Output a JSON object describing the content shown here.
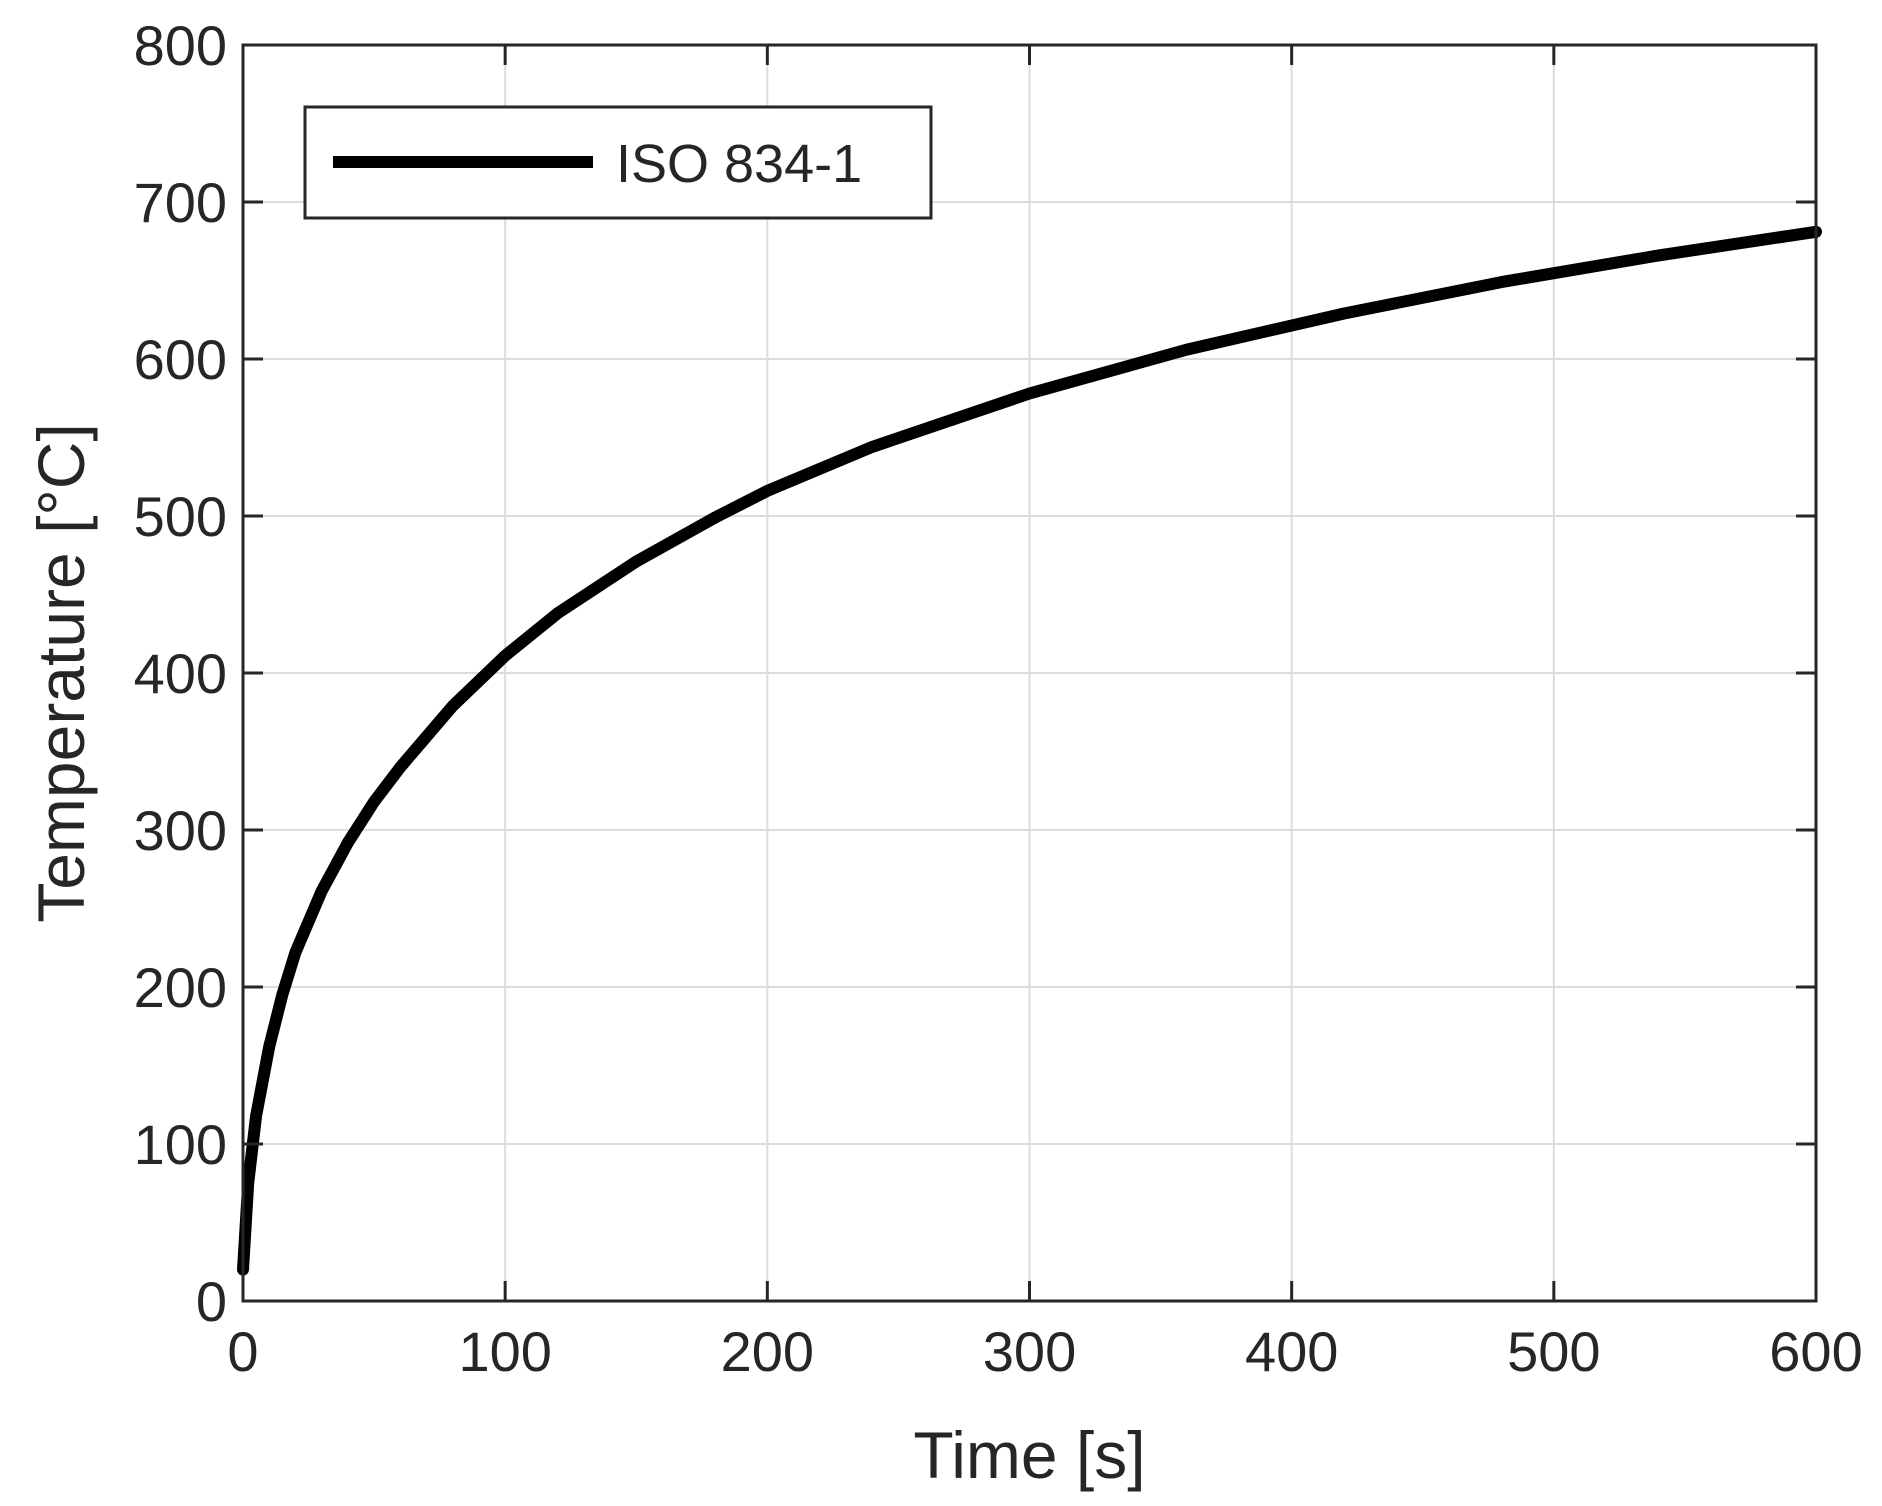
{
  "chart_data": {
    "type": "line",
    "xlabel": "Time [s]",
    "ylabel": "Temperature [°C]",
    "xlim": [
      0,
      600
    ],
    "ylim": [
      0,
      800
    ],
    "xticks": [
      0,
      100,
      200,
      300,
      400,
      500,
      600
    ],
    "yticks": [
      0,
      100,
      200,
      300,
      400,
      500,
      600,
      700,
      800
    ],
    "grid": true,
    "legend_position": "top-left",
    "series": [
      {
        "name": "ISO 834-1",
        "color": "#000000",
        "x": [
          0,
          2,
          5,
          10,
          15,
          20,
          30,
          40,
          50,
          60,
          80,
          100,
          120,
          150,
          180,
          200,
          240,
          300,
          360,
          420,
          480,
          540,
          600
        ],
        "y": [
          20,
          75,
          118,
          162,
          195,
          222,
          261,
          292,
          318,
          340,
          379,
          411,
          438,
          471,
          499,
          516,
          544,
          578,
          606,
          629,
          649,
          666,
          681
        ]
      }
    ]
  }
}
